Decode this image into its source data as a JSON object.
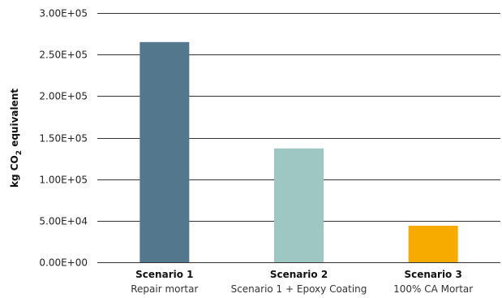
{
  "chart_data": {
    "type": "bar",
    "categories": [
      "Scenario 1",
      "Scenario 2",
      "Scenario 3"
    ],
    "category_sublabels": [
      "Repair mortar",
      "Scenario 1 + Epoxy Coating",
      "100% CA Mortar"
    ],
    "values": [
      265000,
      137000,
      44000
    ],
    "colors": [
      "#53778d",
      "#9ec6c3",
      "#f7ab00"
    ],
    "ylabel_main": "kg CO",
    "ylabel_sub": "2",
    "ylabel_tail": " equivalent",
    "ylim": [
      0,
      300000
    ],
    "yticks": [
      0,
      50000,
      100000,
      150000,
      200000,
      250000,
      300000
    ],
    "ytick_labels": [
      "0.00E+00",
      "5.00E+04",
      "1.00E+05",
      "1.50E+05",
      "2.00E+05",
      "2.50E+05",
      "3.00E+05"
    ],
    "grid": true
  }
}
